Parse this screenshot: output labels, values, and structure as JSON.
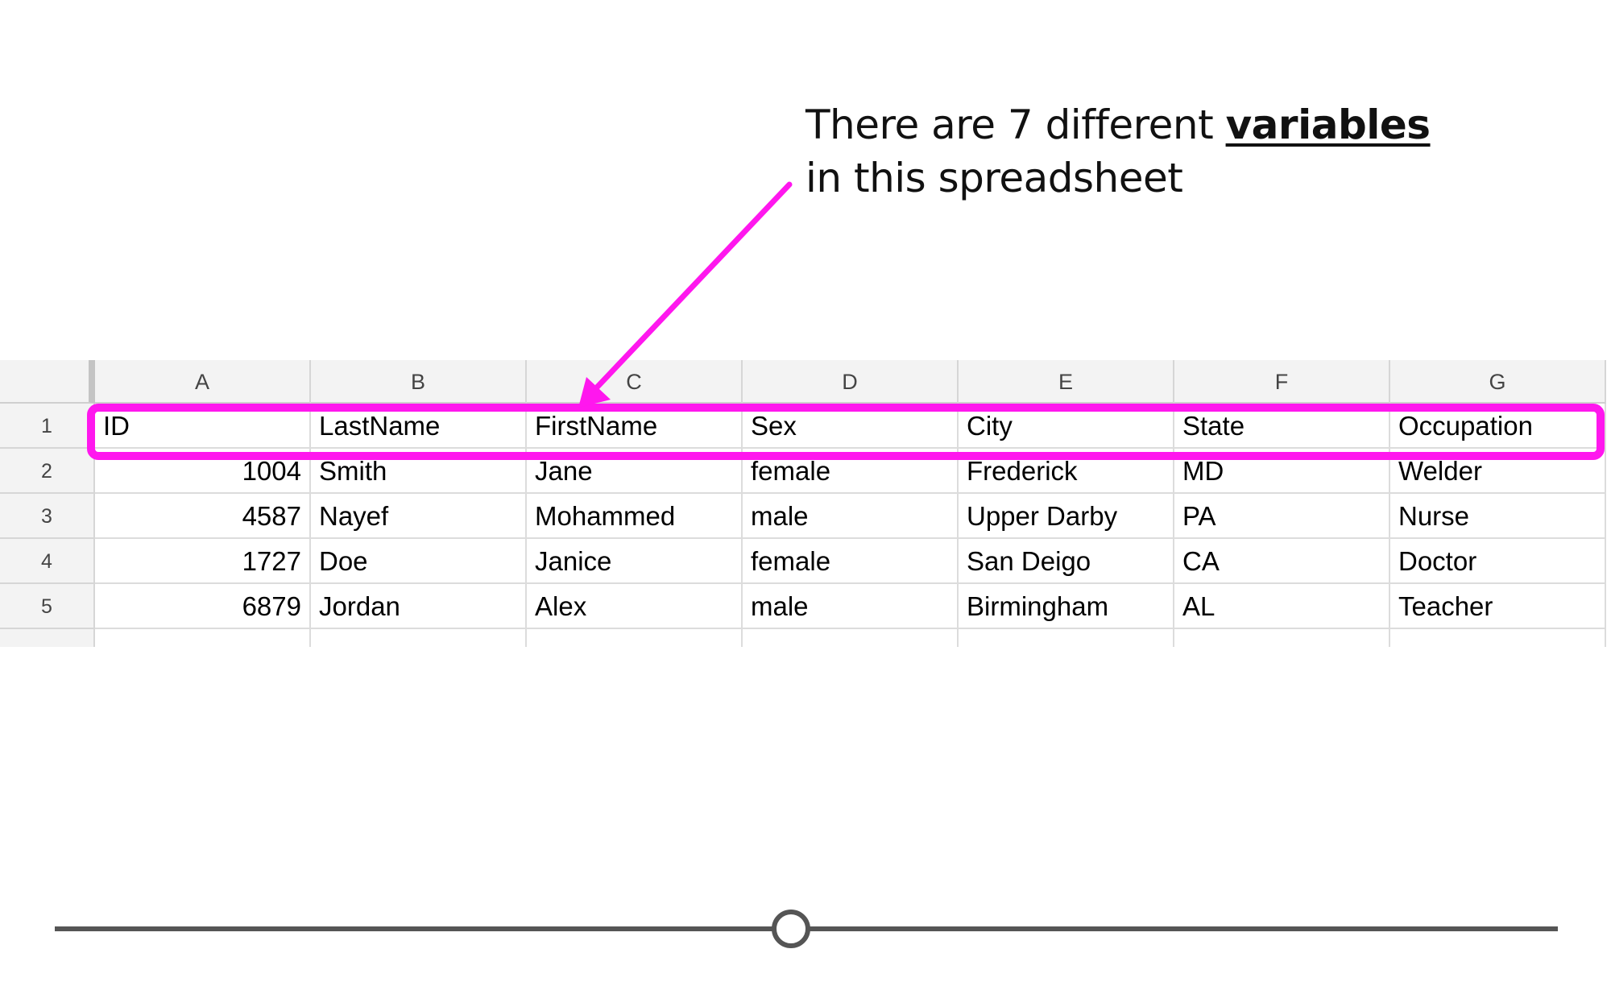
{
  "annotation": {
    "line1_prefix": "There are 7 different ",
    "line1_highlight": "variables",
    "line2": "in this spreadsheet",
    "highlight_color": "#ff17ee"
  },
  "sheet": {
    "columns": [
      "A",
      "B",
      "C",
      "D",
      "E",
      "F",
      "G"
    ],
    "row_numbers": [
      "1",
      "2",
      "3",
      "4",
      "5"
    ],
    "rows": [
      [
        "ID",
        "LastName",
        "FirstName",
        "Sex",
        "City",
        "State",
        "Occupation"
      ],
      [
        "1004",
        "Smith",
        "Jane",
        "female",
        "Frederick",
        "MD",
        "Welder"
      ],
      [
        "4587",
        "Nayef",
        "Mohammed",
        "male",
        "Upper Darby",
        "PA",
        "Nurse"
      ],
      [
        "1727",
        "Doe",
        "Janice",
        "female",
        "San Deigo",
        "CA",
        "Doctor"
      ],
      [
        "6879",
        "Jordan",
        "Alex",
        "male",
        "Birmingham",
        "AL",
        "Teacher"
      ]
    ]
  },
  "slider": {
    "position_fraction": 0.49,
    "track_color": "#555555"
  }
}
